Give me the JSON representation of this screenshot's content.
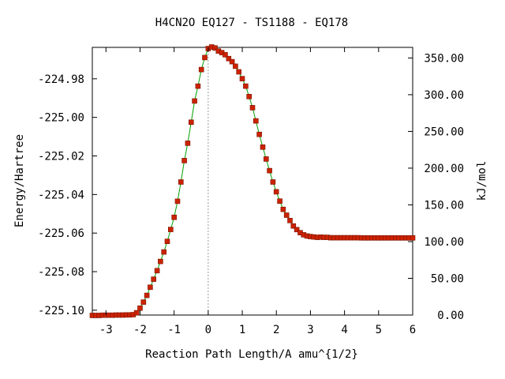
{
  "chart_data": {
    "type": "line",
    "title": "H4CN2O   EQ127 - TS1188 - EQ178",
    "xlabel": "Reaction Path Length/A amu^{1/2}",
    "ylabel": "Energy/Hartree",
    "y2label": "kJ/mol",
    "xlim": [
      -3.4,
      6.0
    ],
    "ylim": [
      -225.1025,
      -224.9637
    ],
    "xticks": [
      -3,
      -2,
      -1,
      0,
      1,
      2,
      3,
      4,
      5,
      6
    ],
    "yticks": [
      -224.98,
      -225.0,
      -225.02,
      -225.04,
      -225.06,
      -225.08,
      -225.1
    ],
    "yticks_labels": [
      "-224.98",
      "-225.00",
      "-225.02",
      "-225.04",
      "-225.06",
      "-225.08",
      "-225.10"
    ],
    "y2ticks": [
      0,
      50,
      100,
      150,
      200,
      250,
      300,
      350
    ],
    "y2ticks_labels": [
      "0.00",
      "50.00",
      "100.00",
      "150.00",
      "200.00",
      "250.00",
      "300.00",
      "350.00"
    ],
    "ts_x": 0,
    "curve_color": "#00a000",
    "marker_color": "#cc2200",
    "series": [
      {
        "x": [
          -3.4,
          -3.3,
          -3.2,
          -3.1,
          -3.0,
          -2.9,
          -2.8,
          -2.7,
          -2.6,
          -2.5,
          -2.4,
          -2.3,
          -2.2,
          -2.1,
          -2.0,
          -1.9,
          -1.8,
          -1.7,
          -1.6,
          -1.5,
          -1.4,
          -1.3,
          -1.2,
          -1.1,
          -1.0,
          -0.9,
          -0.8,
          -0.7,
          -0.6,
          -0.5,
          -0.4,
          -0.3,
          -0.2,
          -0.1,
          0.0,
          0.1,
          0.2,
          0.3,
          0.4,
          0.5,
          0.6,
          0.7,
          0.8,
          0.9,
          1.0,
          1.1,
          1.2,
          1.3,
          1.4,
          1.5,
          1.6,
          1.7,
          1.8,
          1.9,
          2.0,
          2.1,
          2.2,
          2.3,
          2.4,
          2.5,
          2.6,
          2.7,
          2.8,
          2.9,
          3.0,
          3.1,
          3.2,
          3.3,
          3.4,
          3.5,
          3.6,
          3.7,
          3.8,
          3.9,
          4.0,
          4.1,
          4.2,
          4.3,
          4.4,
          4.5,
          4.6,
          4.7,
          4.8,
          4.9,
          5.0,
          5.1,
          5.2,
          5.3,
          5.4,
          5.5,
          5.6,
          5.7,
          5.8,
          5.9,
          6.0
        ],
        "y": [
          -225.1027,
          -225.1027,
          -225.1027,
          -225.1026,
          -225.1026,
          -225.1026,
          -225.1026,
          -225.1025,
          -225.1025,
          -225.1025,
          -225.1024,
          -225.1024,
          -225.1023,
          -225.1013,
          -225.0989,
          -225.0958,
          -225.0923,
          -225.0881,
          -225.0839,
          -225.0795,
          -225.0747,
          -225.0698,
          -225.0643,
          -225.0581,
          -225.0518,
          -225.0435,
          -225.0335,
          -225.0224,
          -225.0134,
          -225.0025,
          -224.9915,
          -224.9838,
          -224.9752,
          -224.969,
          -224.9643,
          -224.9635,
          -224.964,
          -224.9656,
          -224.9664,
          -224.9675,
          -224.9695,
          -224.9711,
          -224.9735,
          -224.9764,
          -224.9799,
          -224.9838,
          -224.9892,
          -224.995,
          -225.0018,
          -225.0088,
          -225.0154,
          -225.0216,
          -225.0276,
          -225.0335,
          -225.0386,
          -225.0434,
          -225.0477,
          -225.0507,
          -225.0535,
          -225.0563,
          -225.0582,
          -225.0598,
          -225.0609,
          -225.0615,
          -225.0618,
          -225.062,
          -225.0622,
          -225.0621,
          -225.0622,
          -225.0622,
          -225.0624,
          -225.0624,
          -225.0624,
          -225.0624,
          -225.0624,
          -225.0624,
          -225.0624,
          -225.0624,
          -225.0624,
          -225.0625,
          -225.0625,
          -225.0625,
          -225.0625,
          -225.0625,
          -225.0625,
          -225.0625,
          -225.0625,
          -225.0625,
          -225.0625,
          -225.0625,
          -225.0625,
          -225.0625,
          -225.0625,
          -225.0625,
          -225.0625
        ]
      }
    ]
  }
}
